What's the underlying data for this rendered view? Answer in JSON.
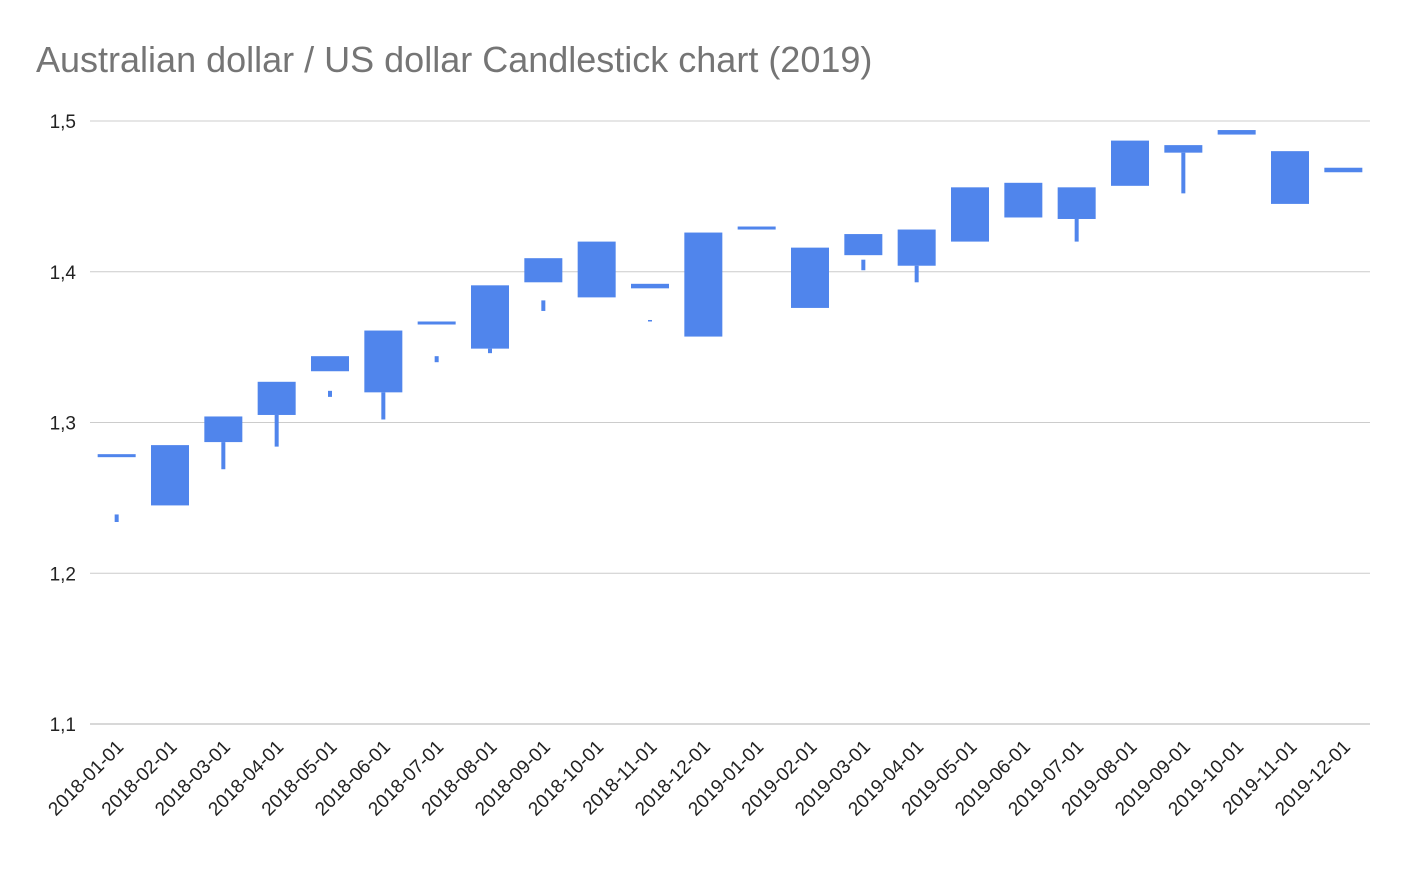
{
  "chart_data": {
    "type": "candlestick",
    "title": "Australian dollar / US dollar Candlestick chart (2019)",
    "xlabel": "",
    "ylabel": "",
    "ylim": [
      1.1,
      1.5
    ],
    "yticks": [
      "1,1",
      "1,2",
      "1,3",
      "1,4",
      "1,5"
    ],
    "ytick_values": [
      1.1,
      1.2,
      1.3,
      1.4,
      1.5
    ],
    "grid": true,
    "legend": "none",
    "colors": {
      "candle": "#5085ec",
      "grid": "#cccccc",
      "title": "#757575"
    },
    "categories": [
      "2018-01-01",
      "2018-02-01",
      "2018-03-01",
      "2018-04-01",
      "2018-05-01",
      "2018-06-01",
      "2018-07-01",
      "2018-08-01",
      "2018-09-01",
      "2018-10-01",
      "2018-11-01",
      "2018-12-01",
      "2019-01-01",
      "2019-02-01",
      "2019-03-01",
      "2019-04-01",
      "2019-05-01",
      "2019-06-01",
      "2019-07-01",
      "2019-08-01",
      "2019-09-01",
      "2019-10-01",
      "2019-11-01",
      "2019-12-01"
    ],
    "candles": [
      {
        "box": [
          1.277,
          1.279
        ],
        "wick": [
          1.234,
          1.239
        ]
      },
      {
        "box": [
          1.245,
          1.285
        ],
        "wick": null
      },
      {
        "box": [
          1.287,
          1.304
        ],
        "wick": [
          1.269,
          1.287
        ]
      },
      {
        "box": [
          1.305,
          1.327
        ],
        "wick": [
          1.284,
          1.305
        ]
      },
      {
        "box": [
          1.334,
          1.344
        ],
        "wick": [
          1.317,
          1.321
        ]
      },
      {
        "box": [
          1.32,
          1.361
        ],
        "wick": [
          1.302,
          1.32
        ]
      },
      {
        "box": [
          1.365,
          1.367
        ],
        "wick": [
          1.34,
          1.344
        ]
      },
      {
        "box": [
          1.349,
          1.391
        ],
        "wick": [
          1.346,
          1.349
        ]
      },
      {
        "box": [
          1.393,
          1.409
        ],
        "wick": [
          1.374,
          1.381
        ]
      },
      {
        "box": [
          1.383,
          1.42
        ],
        "wick": null
      },
      {
        "box": [
          1.389,
          1.392
        ],
        "wick": [
          1.367,
          1.368
        ]
      },
      {
        "box": [
          1.357,
          1.426
        ],
        "wick": null
      },
      {
        "box": [
          1.428,
          1.43
        ],
        "wick": null
      },
      {
        "box": [
          1.376,
          1.416
        ],
        "wick": null
      },
      {
        "box": [
          1.411,
          1.425
        ],
        "wick": [
          1.401,
          1.408
        ]
      },
      {
        "box": [
          1.404,
          1.428
        ],
        "wick": [
          1.393,
          1.404
        ]
      },
      {
        "box": [
          1.42,
          1.456
        ],
        "wick": null
      },
      {
        "box": [
          1.436,
          1.459
        ],
        "wick": null
      },
      {
        "box": [
          1.435,
          1.456
        ],
        "wick": [
          1.42,
          1.435
        ]
      },
      {
        "box": [
          1.457,
          1.487
        ],
        "wick": null
      },
      {
        "box": [
          1.479,
          1.484
        ],
        "wick": [
          1.452,
          1.479
        ]
      },
      {
        "box": [
          1.491,
          1.494
        ],
        "wick": null
      },
      {
        "box": [
          1.445,
          1.48
        ],
        "wick": null
      },
      {
        "box": [
          1.466,
          1.469
        ],
        "wick": null
      }
    ]
  }
}
